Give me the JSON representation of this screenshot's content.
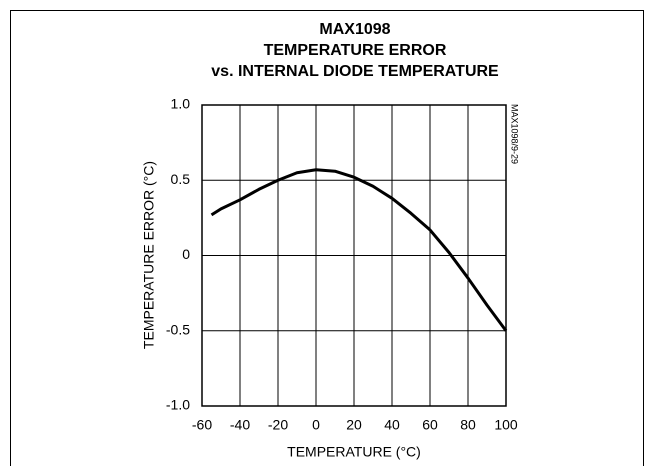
{
  "chart_data": {
    "type": "line",
    "title": [
      "MAX1098",
      "TEMPERATURE ERROR",
      "vs. INTERNAL DIODE TEMPERATURE"
    ],
    "annotation": "MAX1098/9-29",
    "x_label": "TEMPERATURE (°C)",
    "y_label": "TEMPERATURE ERROR (°C)",
    "x": [
      -55,
      -50,
      -40,
      -30,
      -20,
      -10,
      0,
      10,
      20,
      30,
      40,
      50,
      60,
      70,
      80,
      90,
      100
    ],
    "series": [
      {
        "color": "#000000",
        "values": [
          0.27,
          0.31,
          0.37,
          0.44,
          0.5,
          0.55,
          0.57,
          0.56,
          0.52,
          0.46,
          0.38,
          0.28,
          0.17,
          0.02,
          -0.15,
          -0.33,
          -0.5
        ]
      }
    ],
    "xlim": [
      -60,
      100
    ],
    "xticks": [
      -60,
      -40,
      -20,
      0,
      20,
      40,
      60,
      80,
      100
    ],
    "ylim": [
      -1,
      1
    ],
    "yticks": [
      {
        "value": -1,
        "label": "-1.0"
      },
      -0.5,
      0,
      0.5,
      {
        "value": 1,
        "label": "1.0"
      }
    ],
    "grid": true
  }
}
